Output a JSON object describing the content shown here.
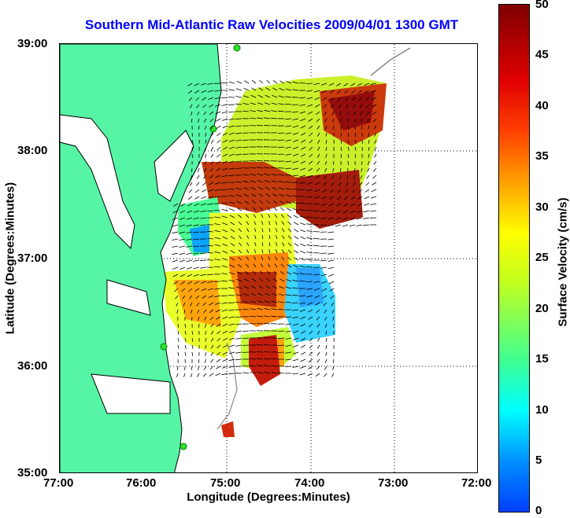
{
  "title": "Southern Mid-Atlantic Raw Velocities 2009/04/01 1300 GMT",
  "xlabel": "Longitude (Degrees:Minutes)",
  "ylabel": "Latitude (Degrees:Minutes)",
  "colorbar_label": "Surface Velocity (cm/s)",
  "x_ticks": [
    "77:00",
    "76:00",
    "75:00",
    "74:00",
    "73:00",
    "72:00"
  ],
  "y_ticks": [
    "39:00",
    "38:00",
    "37:00",
    "36:00",
    "35:00"
  ],
  "colorbar_ticks": [
    "50",
    "45",
    "40",
    "35",
    "30",
    "25",
    "20",
    "15",
    "10",
    "5",
    "0"
  ],
  "colors": {
    "land": "#55f5a5",
    "title": "#0000ff"
  },
  "map": {
    "lon_range": [
      -77,
      -72
    ],
    "lat_range": [
      35,
      39
    ],
    "velocity_range_cm_s": [
      0,
      50
    ]
  }
}
